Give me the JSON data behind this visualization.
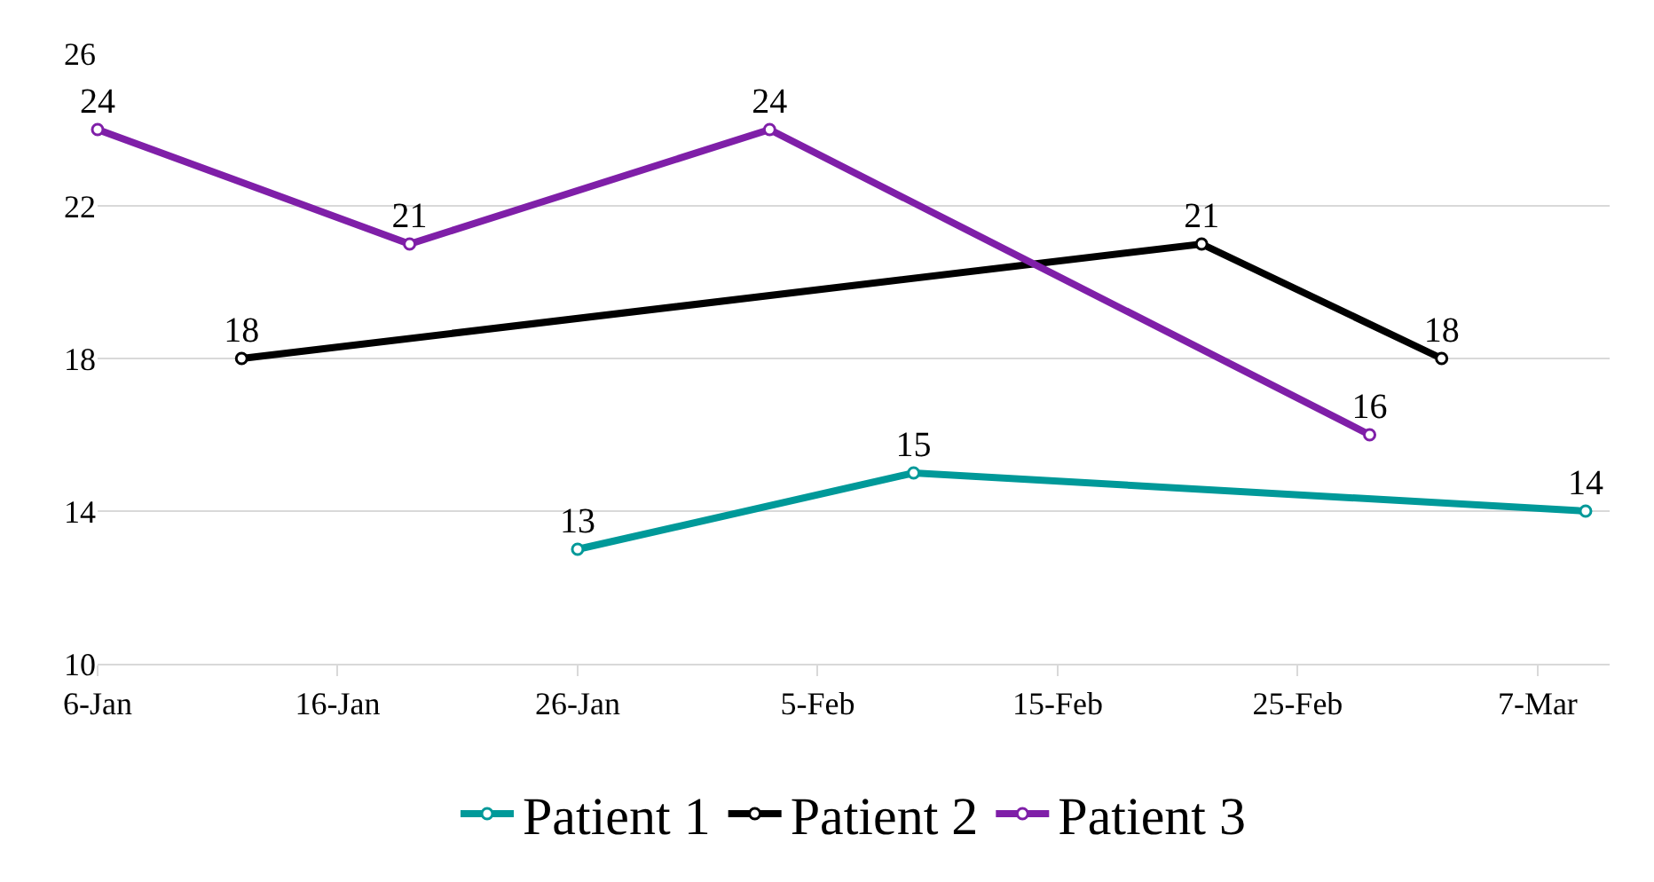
{
  "chart_data": {
    "type": "line",
    "series": [
      {
        "name": "Patient 1",
        "color": "#009999",
        "x": [
          "--01-26",
          "--02-09",
          "--03-09"
        ],
        "values": [
          13,
          15,
          14
        ]
      },
      {
        "name": "Patient 2",
        "color": "#000000",
        "x": [
          "--01-12",
          "--02-21",
          "--03-03"
        ],
        "values": [
          18,
          21,
          18
        ]
      },
      {
        "name": "Patient 3",
        "color": "#7f1fa8",
        "x": [
          "--01-06",
          "--01-19",
          "--02-03",
          "--02-28"
        ],
        "values": [
          24,
          21,
          24,
          16
        ]
      }
    ],
    "xlim": [
      "--01-06",
      "--03-10"
    ],
    "xticks": [
      {
        "value": "--01-06",
        "label": "6-Jan"
      },
      {
        "value": "--01-16",
        "label": "16-Jan"
      },
      {
        "value": "--01-26",
        "label": "26-Jan"
      },
      {
        "value": "--02-05",
        "label": "5-Feb"
      },
      {
        "value": "--02-15",
        "label": "15-Feb"
      },
      {
        "value": "--02-25",
        "label": "25-Feb"
      },
      {
        "value": "--03-07",
        "label": "7-Mar"
      }
    ],
    "ylim": [
      10,
      26
    ],
    "yticks": [
      10,
      14,
      18,
      22,
      26
    ],
    "grid": "y",
    "legend": "bottom",
    "marker": "circle",
    "line_style": "solid",
    "data_labels": true
  }
}
